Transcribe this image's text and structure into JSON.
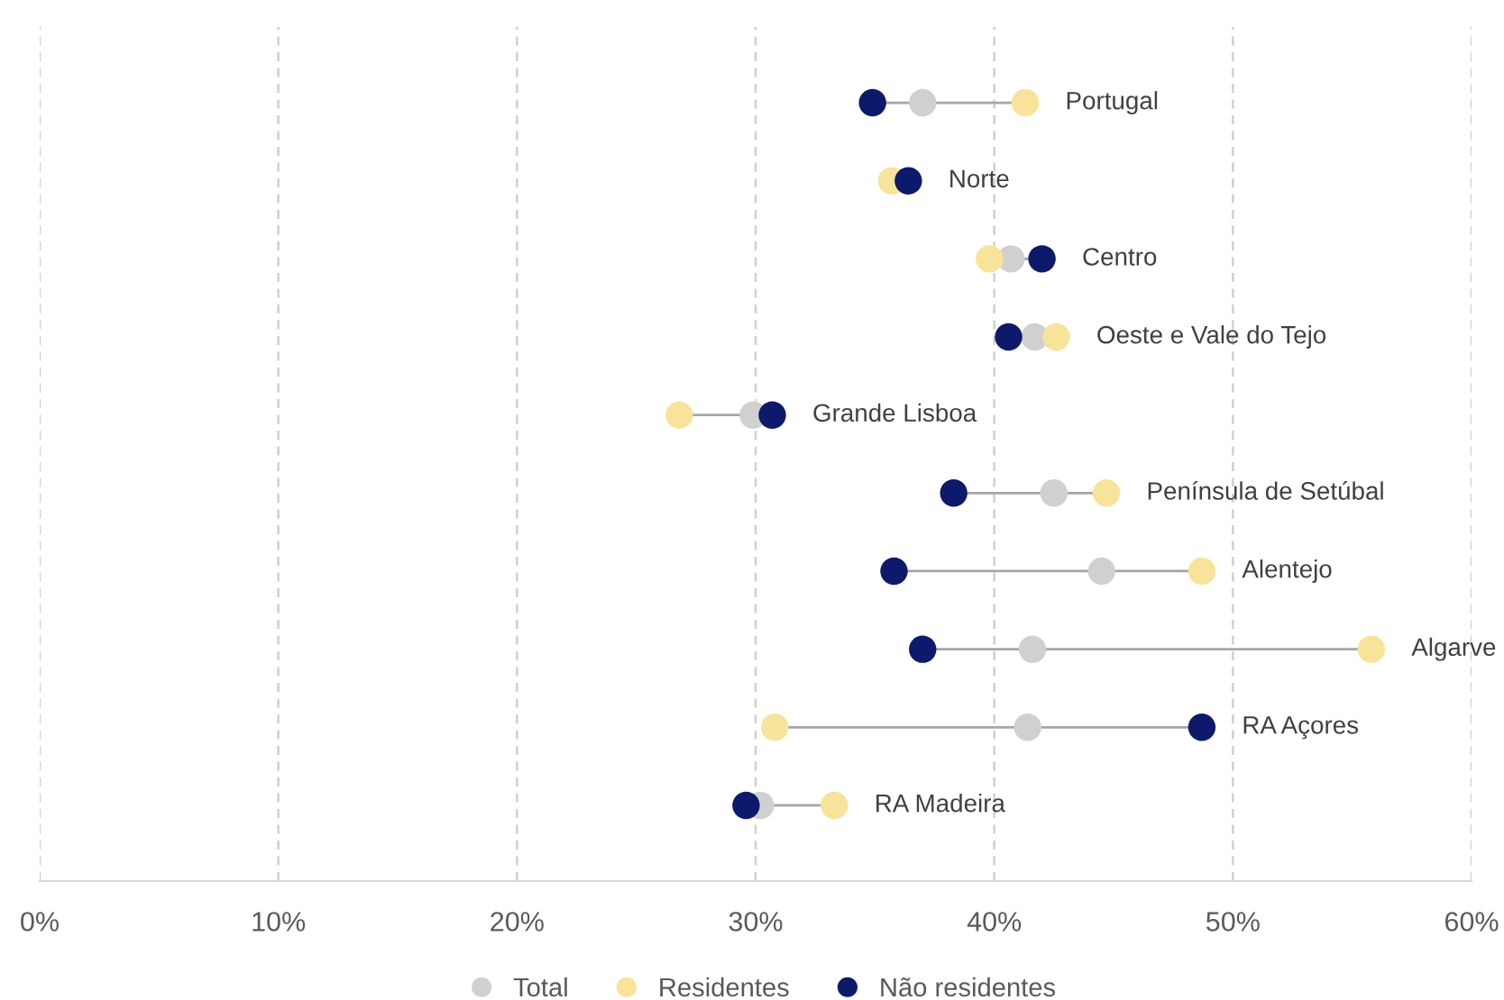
{
  "chart_data": {
    "type": "scatter",
    "orientation": "horizontal",
    "categories": [
      "Portugal",
      "Norte",
      "Centro",
      "Oeste e Vale do Tejo",
      "Grande Lisboa",
      "Península de Setúbal",
      "Alentejo",
      "Algarve",
      "RA Açores",
      "RA Madeira"
    ],
    "series": [
      {
        "name": "Total",
        "color": "#d0d0d0",
        "values": [
          0.37,
          null,
          0.407,
          0.417,
          0.299,
          0.425,
          0.445,
          0.416,
          0.414,
          0.302
        ]
      },
      {
        "name": "Residentes",
        "color": "#f7e49a",
        "values": [
          0.413,
          0.357,
          0.398,
          0.426,
          0.268,
          0.447,
          0.487,
          0.558,
          0.308,
          0.333
        ]
      },
      {
        "name": "Não residentes",
        "color": "#0d1a6b",
        "values": [
          0.349,
          0.364,
          0.42,
          0.406,
          0.307,
          0.383,
          0.358,
          0.37,
          0.487,
          0.296
        ]
      }
    ],
    "xlim": [
      0,
      0.6
    ],
    "xticks": [
      {
        "value": 0,
        "label": "0%"
      },
      {
        "value": 0.1,
        "label": "10%"
      },
      {
        "value": 0.2,
        "label": "20%"
      },
      {
        "value": 0.3,
        "label": "30%"
      },
      {
        "value": 0.4,
        "label": "40%"
      },
      {
        "value": 0.5,
        "label": "50%"
      },
      {
        "value": 0.6,
        "label": "60%"
      }
    ],
    "grid": "x",
    "legend": "bottom",
    "marker": "circle",
    "tick_labels": "x"
  }
}
